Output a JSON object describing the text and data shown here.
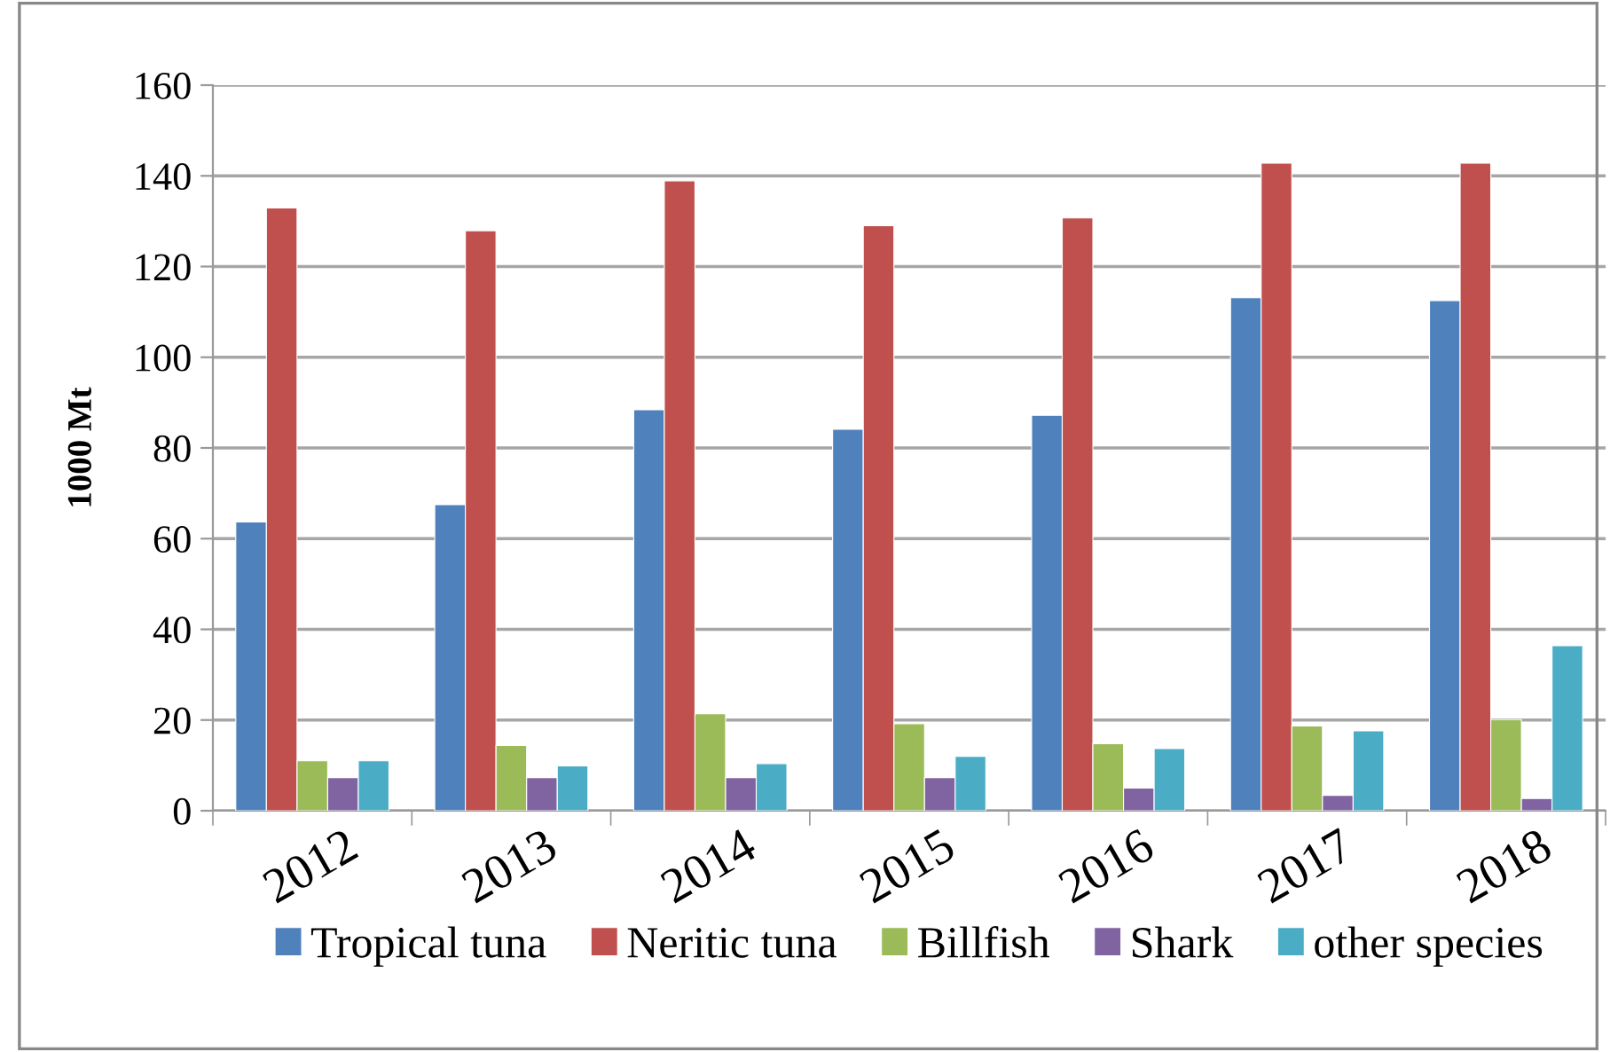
{
  "chart_data": {
    "type": "bar",
    "ylabel": "1000 Mt",
    "categories": [
      "2012",
      "2013",
      "2014",
      "2015",
      "2016",
      "2017",
      "2018"
    ],
    "series": [
      {
        "name": "Tropical tuna",
        "color": "#4f81bd",
        "values": [
          63.7,
          67.5,
          88.4,
          84.1,
          87.2,
          113.1,
          112.5
        ]
      },
      {
        "name": "Neritic tuna",
        "color": "#c0504d",
        "values": [
          132.9,
          127.9,
          138.9,
          129.0,
          130.7,
          142.8,
          142.8
        ]
      },
      {
        "name": "Billfish",
        "color": "#9bbb59",
        "values": [
          11.0,
          14.4,
          21.4,
          19.2,
          14.8,
          18.7,
          20.1
        ]
      },
      {
        "name": "Shark",
        "color": "#8064a2",
        "values": [
          7.3,
          7.3,
          7.3,
          7.3,
          5.0,
          3.4,
          2.7
        ]
      },
      {
        "name": "other species",
        "color": "#4bacc6",
        "values": [
          11.0,
          9.9,
          10.4,
          12.0,
          13.7,
          17.6,
          36.4
        ]
      }
    ],
    "ylim": [
      0,
      160
    ],
    "yticks": [
      0,
      20,
      40,
      60,
      80,
      100,
      120,
      140,
      160
    ],
    "grid": "y",
    "legend": "bottom"
  }
}
